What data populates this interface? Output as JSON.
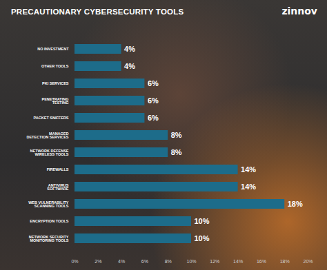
{
  "chart_data": {
    "type": "bar",
    "title": "PRECAUTIONARY CYBERSECURITY TOOLS",
    "annotations": [
      "zinnov"
    ],
    "orientation": "horizontal",
    "categories": [
      "NO INVESTMENT",
      "OTHER TOOLS",
      "PKI SERVICES",
      "PENETRATING TESTING",
      "PACKET SNIFFERS",
      "MANAGED DETECTION SERVICES",
      "NETWORK DEFENSE WIRELESS TOOLS",
      "FIREWALLS",
      "ANTIVIRUS SOFTWARE",
      "WEB VULNERABILITY SCANNING TOOLS",
      "ENCRYPTION TOOLS",
      "NETWORK SECURITY MONITORING TOOLS"
    ],
    "values": [
      4,
      4,
      6,
      6,
      6,
      8,
      8,
      14,
      14,
      18,
      10,
      10
    ],
    "value_labels": [
      "4%",
      "4%",
      "6%",
      "6%",
      "6%",
      "8%",
      "8%",
      "14%",
      "14%",
      "18%",
      "10%",
      "10%"
    ],
    "color": "#1d6c8a",
    "xlim": [
      0,
      20
    ],
    "xticks": [
      {
        "value": 0,
        "label": "0%"
      },
      {
        "value": 2,
        "label": "2%"
      },
      {
        "value": 4,
        "label": "4%"
      },
      {
        "value": 6,
        "label": "6%"
      },
      {
        "value": 8,
        "label": "8%"
      },
      {
        "value": 10,
        "label": "10%"
      },
      {
        "value": 12,
        "label": "12%"
      },
      {
        "value": 14,
        "label": "14%"
      },
      {
        "value": 16,
        "label": "16%"
      },
      {
        "value": 18,
        "label": "18%"
      },
      {
        "value": 20,
        "label": "20%"
      }
    ],
    "grid": false,
    "data_labels": true
  }
}
